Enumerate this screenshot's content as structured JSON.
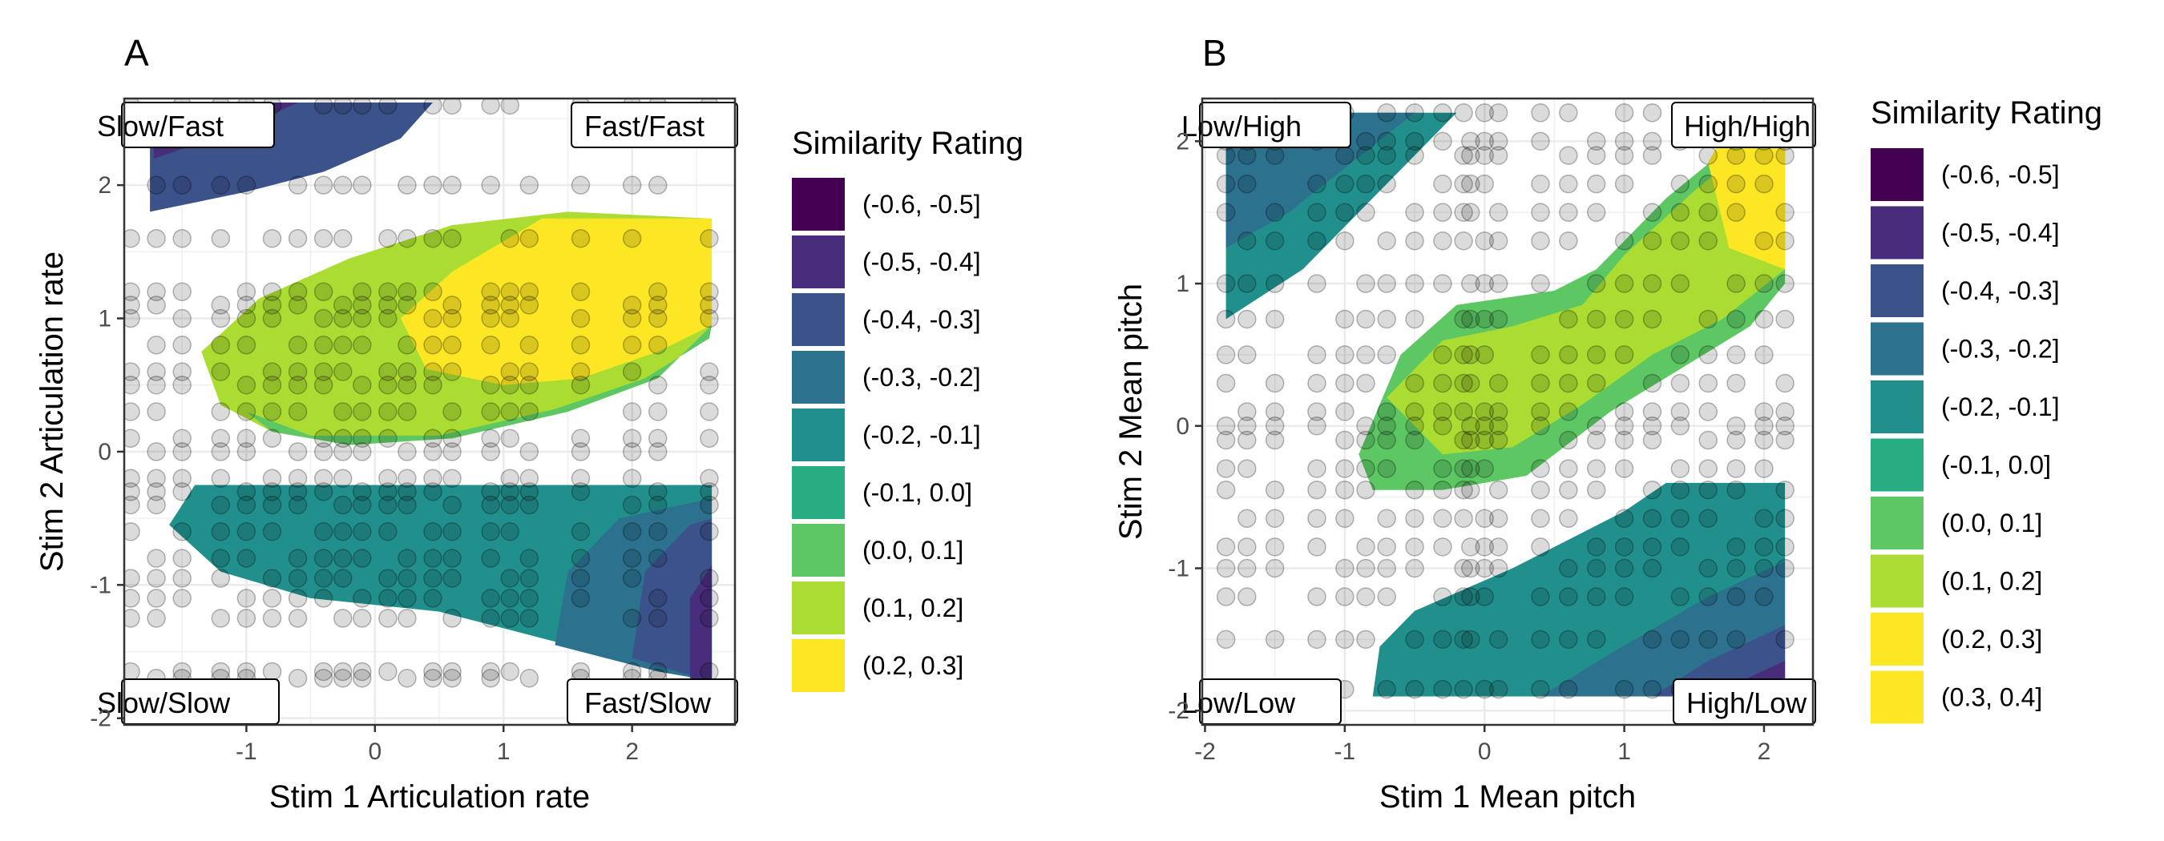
{
  "chart_data": [
    {
      "type": "heatmap",
      "panel": "A",
      "xlabel": "Stim 1 Articulation rate",
      "ylabel": "Stim 2 Articulation rate",
      "xlim": [
        -1.95,
        2.8
      ],
      "ylim": [
        -2.05,
        2.65
      ],
      "xticks": [
        -1,
        0,
        1,
        2
      ],
      "yticks": [
        -2,
        -1,
        0,
        1,
        2
      ],
      "grid": true,
      "legend_position": "right",
      "legend": {
        "title": "Similarity Rating",
        "bins": [
          {
            "label": "(-0.6, -0.5]",
            "color": "#440154"
          },
          {
            "label": "(-0.5, -0.4]",
            "color": "#472D7B"
          },
          {
            "label": "(-0.4, -0.3]",
            "color": "#3B528B"
          },
          {
            "label": "(-0.3, -0.2]",
            "color": "#2C728E"
          },
          {
            "label": "(-0.2, -0.1]",
            "color": "#21908C"
          },
          {
            "label": "(-0.1, 0.0]",
            "color": "#27AD81"
          },
          {
            "label": "(0.0, 0.1]",
            "color": "#5DC863"
          },
          {
            "label": "(0.1, 0.2]",
            "color": "#AADC32"
          },
          {
            "label": "(0.2, 0.3]",
            "color": "#FDE725"
          }
        ]
      },
      "corner_labels": {
        "top_left": "Slow/Fast",
        "top_right": "Fast/Fast",
        "bottom_left": "Slow/Slow",
        "bottom_right": "Fast/Slow"
      },
      "contour_regions": [
        {
          "bin": 2,
          "points": [
            [
              -1.75,
              2.62
            ],
            [
              0.45,
              2.62
            ],
            [
              0.2,
              2.35
            ],
            [
              -0.4,
              2.1
            ],
            [
              -1.0,
              1.95
            ],
            [
              -1.75,
              1.8
            ]
          ]
        },
        {
          "bin": 1,
          "points": [
            [
              -1.72,
              2.62
            ],
            [
              -0.6,
              2.62
            ],
            [
              -1.1,
              2.4
            ],
            [
              -1.72,
              2.2
            ]
          ]
        },
        {
          "bin": 7,
          "points": [
            [
              -1.35,
              0.75
            ],
            [
              -0.9,
              1.15
            ],
            [
              -0.2,
              1.45
            ],
            [
              0.6,
              1.7
            ],
            [
              1.5,
              1.8
            ],
            [
              2.6,
              1.75
            ],
            [
              2.62,
              0.95
            ],
            [
              2.2,
              0.55
            ],
            [
              1.5,
              0.3
            ],
            [
              0.6,
              0.1
            ],
            [
              -0.2,
              0.05
            ],
            [
              -0.8,
              0.15
            ],
            [
              -1.2,
              0.35
            ]
          ]
        },
        {
          "bin": 6,
          "points": [
            [
              -1.0,
              0.3
            ],
            [
              -0.5,
              0.12
            ],
            [
              0.5,
              0.12
            ],
            [
              1.4,
              0.32
            ],
            [
              2.1,
              0.55
            ],
            [
              2.6,
              0.85
            ],
            [
              2.62,
              0.95
            ],
            [
              2.2,
              0.55
            ],
            [
              1.5,
              0.3
            ],
            [
              0.6,
              0.1
            ],
            [
              -0.2,
              0.05
            ],
            [
              -0.8,
              0.15
            ]
          ]
        },
        {
          "bin": 8,
          "points": [
            [
              0.2,
              1.0
            ],
            [
              0.6,
              1.35
            ],
            [
              1.3,
              1.75
            ],
            [
              2.62,
              1.75
            ],
            [
              2.62,
              0.95
            ],
            [
              2.2,
              0.75
            ],
            [
              1.6,
              0.55
            ],
            [
              1.0,
              0.5
            ],
            [
              0.4,
              0.62
            ]
          ]
        },
        {
          "bin": 4,
          "points": [
            [
              -1.6,
              -0.55
            ],
            [
              -1.4,
              -0.25
            ],
            [
              2.62,
              -0.25
            ],
            [
              2.62,
              -1.7
            ],
            [
              2.2,
              -1.6
            ],
            [
              1.5,
              -1.45
            ],
            [
              0.5,
              -1.2
            ],
            [
              -0.5,
              -1.1
            ],
            [
              -1.2,
              -0.9
            ]
          ]
        },
        {
          "bin": 3,
          "points": [
            [
              1.4,
              -1.45
            ],
            [
              1.5,
              -0.9
            ],
            [
              1.9,
              -0.5
            ],
            [
              2.62,
              -0.35
            ],
            [
              2.62,
              -1.72
            ],
            [
              2.2,
              -1.65
            ]
          ]
        },
        {
          "bin": 2,
          "points": [
            [
              2.0,
              -1.55
            ],
            [
              2.1,
              -0.9
            ],
            [
              2.45,
              -0.55
            ],
            [
              2.62,
              -0.5
            ],
            [
              2.62,
              -1.72
            ],
            [
              2.35,
              -1.65
            ]
          ]
        },
        {
          "bin": 1,
          "points": [
            [
              2.45,
              -1.7
            ],
            [
              2.45,
              -1.1
            ],
            [
              2.62,
              -0.85
            ],
            [
              2.62,
              -1.72
            ]
          ]
        }
      ],
      "scatter_x": [
        -1.9,
        -1.7,
        -1.5,
        -1.2,
        -1.0,
        -0.8,
        -0.6,
        -0.4,
        -0.25,
        -0.1,
        0.1,
        0.25,
        0.45,
        0.6,
        0.9,
        1.05,
        1.2,
        1.6,
        2.0,
        2.2,
        2.6
      ],
      "scatter_y": [
        -1.7,
        -1.65,
        -1.25,
        -1.1,
        -0.95,
        -0.8,
        -0.6,
        -0.4,
        -0.3,
        -0.2,
        0.0,
        0.1,
        0.3,
        0.5,
        0.6,
        0.8,
        1.0,
        1.1,
        1.2,
        1.6,
        2.0,
        2.6
      ]
    },
    {
      "type": "heatmap",
      "panel": "B",
      "xlabel": "Stim 1 Mean pitch",
      "ylabel": "Stim 2 Mean pitch",
      "xlim": [
        -2.02,
        2.35
      ],
      "ylim": [
        -2.1,
        2.3
      ],
      "xticks": [
        -2,
        -1,
        0,
        1,
        2
      ],
      "yticks": [
        -2,
        -1,
        0,
        1,
        2
      ],
      "grid": true,
      "legend_position": "right",
      "legend": {
        "title": "Similarity Rating",
        "bins": [
          {
            "label": "(-0.6, -0.5]",
            "color": "#440154"
          },
          {
            "label": "(-0.5, -0.4]",
            "color": "#472D7B"
          },
          {
            "label": "(-0.4, -0.3]",
            "color": "#3B528B"
          },
          {
            "label": "(-0.3, -0.2]",
            "color": "#2C728E"
          },
          {
            "label": "(-0.2, -0.1]",
            "color": "#21908C"
          },
          {
            "label": "(-0.1, 0.0]",
            "color": "#27AD81"
          },
          {
            "label": "(0.0, 0.1]",
            "color": "#5DC863"
          },
          {
            "label": "(0.1, 0.2]",
            "color": "#AADC32"
          },
          {
            "label": "(0.2, 0.3]",
            "color": "#FDE725"
          },
          {
            "label": "(0.3, 0.4]",
            "color": "#FDE725"
          }
        ]
      },
      "corner_labels": {
        "top_left": "Low/High",
        "top_right": "High/High",
        "bottom_left": "Low/Low",
        "bottom_right": "High/Low"
      },
      "contour_regions": [
        {
          "bin": 4,
          "points": [
            [
              -1.85,
              2.2
            ],
            [
              -0.2,
              2.2
            ],
            [
              -0.45,
              1.95
            ],
            [
              -0.85,
              1.55
            ],
            [
              -1.3,
              1.1
            ],
            [
              -1.85,
              0.75
            ]
          ]
        },
        {
          "bin": 3,
          "points": [
            [
              -1.85,
              2.2
            ],
            [
              -0.5,
              2.2
            ],
            [
              -0.95,
              1.85
            ],
            [
              -1.4,
              1.5
            ],
            [
              -1.85,
              1.25
            ]
          ]
        },
        {
          "bin": 6,
          "points": [
            [
              -0.9,
              -0.2
            ],
            [
              -0.6,
              0.5
            ],
            [
              -0.2,
              0.85
            ],
            [
              0.5,
              0.95
            ],
            [
              0.8,
              1.1
            ],
            [
              1.3,
              1.6
            ],
            [
              1.8,
              2.0
            ],
            [
              2.15,
              2.2
            ],
            [
              2.15,
              1.0
            ],
            [
              1.9,
              0.7
            ],
            [
              1.4,
              0.4
            ],
            [
              0.9,
              0.1
            ],
            [
              0.3,
              -0.35
            ],
            [
              -0.3,
              -0.45
            ],
            [
              -0.8,
              -0.45
            ]
          ]
        },
        {
          "bin": 7,
          "points": [
            [
              -0.7,
              0.2
            ],
            [
              -0.3,
              0.6
            ],
            [
              0.2,
              0.7
            ],
            [
              0.7,
              0.85
            ],
            [
              1.0,
              1.2
            ],
            [
              1.5,
              1.65
            ],
            [
              2.0,
              2.05
            ],
            [
              2.15,
              2.2
            ],
            [
              2.15,
              1.1
            ],
            [
              1.7,
              0.75
            ],
            [
              1.2,
              0.5
            ],
            [
              0.7,
              0.15
            ],
            [
              0.2,
              -0.15
            ],
            [
              -0.3,
              -0.2
            ]
          ]
        },
        {
          "bin": 8,
          "points": [
            [
              1.6,
              1.85
            ],
            [
              1.8,
              2.2
            ],
            [
              2.15,
              2.2
            ],
            [
              2.15,
              1.1
            ],
            [
              1.75,
              1.25
            ]
          ]
        },
        {
          "bin": 4,
          "points": [
            [
              -0.8,
              -1.9
            ],
            [
              -0.75,
              -1.55
            ],
            [
              -0.5,
              -1.3
            ],
            [
              0.2,
              -1.0
            ],
            [
              1.0,
              -0.6
            ],
            [
              1.3,
              -0.4
            ],
            [
              2.15,
              -0.4
            ],
            [
              2.15,
              -1.9
            ]
          ]
        },
        {
          "bin": 3,
          "points": [
            [
              0.4,
              -1.9
            ],
            [
              0.9,
              -1.6
            ],
            [
              1.6,
              -1.2
            ],
            [
              2.15,
              -0.95
            ],
            [
              2.15,
              -1.9
            ]
          ]
        },
        {
          "bin": 2,
          "points": [
            [
              1.2,
              -1.9
            ],
            [
              1.6,
              -1.65
            ],
            [
              2.15,
              -1.4
            ],
            [
              2.15,
              -1.9
            ]
          ]
        },
        {
          "bin": 1,
          "points": [
            [
              1.6,
              -1.9
            ],
            [
              2.15,
              -1.65
            ],
            [
              2.15,
              -1.9
            ]
          ]
        }
      ],
      "scatter_x": [
        -1.85,
        -1.7,
        -1.5,
        -1.2,
        -1.0,
        -0.85,
        -0.7,
        -0.5,
        -0.3,
        -0.15,
        -0.1,
        0.0,
        0.1,
        0.4,
        0.6,
        0.8,
        1.0,
        1.2,
        1.4,
        1.6,
        1.8,
        2.0,
        2.15
      ],
      "scatter_y": [
        -1.85,
        -1.5,
        -1.2,
        -1.0,
        -0.85,
        -0.65,
        -0.45,
        -0.3,
        -0.1,
        0.0,
        0.1,
        0.3,
        0.5,
        0.75,
        1.0,
        1.3,
        1.5,
        1.7,
        1.9,
        2.0,
        2.2
      ]
    }
  ]
}
